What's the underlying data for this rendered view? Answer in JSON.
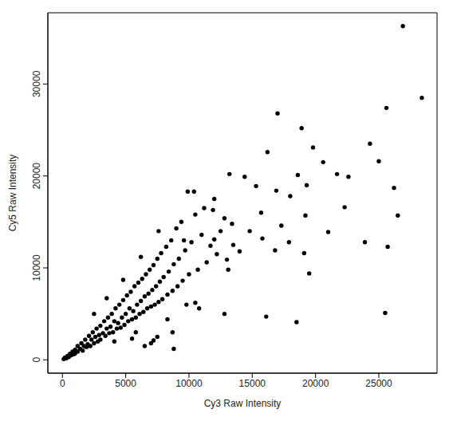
{
  "chart_data": {
    "type": "scatter",
    "x_label": "Cy3 Raw Intensity",
    "y_label": "Cy5 Raw Intensity",
    "color": "#000000",
    "marker": "circle",
    "grid": false,
    "xlim": [
      -1150,
      29600
    ],
    "ylim": [
      -1450,
      37750
    ],
    "xticks": [
      0,
      5000,
      10000,
      15000,
      20000,
      25000
    ],
    "yticks": [
      0,
      10000,
      20000,
      30000
    ],
    "x": [
      26900,
      28400,
      25600,
      24300,
      25000,
      26200,
      26500,
      25700,
      23900,
      25500,
      18900,
      17000,
      19800,
      20600,
      21700,
      22600,
      22300,
      19300,
      18600,
      18000,
      19200,
      21000,
      19100,
      19500,
      18500,
      16100,
      12800,
      16200,
      15300,
      14400,
      13200,
      10400,
      15700,
      16900,
      17300,
      15800,
      14800,
      13400,
      11900,
      12000,
      14000,
      13100,
      16800,
      17900,
      100,
      200,
      300,
      400,
      500,
      600,
      700,
      800,
      900,
      1000,
      1000,
      1200,
      1200,
      1400,
      1500,
      1600,
      1700,
      1800,
      1900,
      2000,
      2100,
      2200,
      2300,
      2400,
      2500,
      2600,
      2700,
      2800,
      2900,
      3000,
      3000,
      3200,
      3300,
      3400,
      3500,
      3600,
      3700,
      3800,
      3900,
      4000,
      4100,
      4200,
      4300,
      4400,
      4500,
      4600,
      4700,
      4800,
      4900,
      5000,
      5100,
      5200,
      5300,
      5400,
      5500,
      5600,
      5700,
      5800,
      5900,
      6000,
      6100,
      6200,
      6300,
      6400,
      6500,
      6600,
      6700,
      6800,
      6900,
      7000,
      7100,
      7200,
      7300,
      7400,
      7500,
      7600,
      7700,
      7800,
      7900,
      8000,
      8200,
      8300,
      8400,
      8600,
      8700,
      8800,
      9000,
      9100,
      9200,
      9400,
      9500,
      9700,
      9900,
      10000,
      10200,
      10500,
      10700,
      11000,
      11200,
      11400,
      11700,
      12000,
      12200,
      12500,
      12800,
      13000,
      13500,
      7000,
      6500,
      5500,
      8700,
      7500,
      10800,
      8800,
      3500,
      2500,
      4800,
      6200,
      7600,
      9600,
      5800,
      4100,
      8300,
      9800,
      7200,
      10500
    ],
    "values": [
      36300,
      28500,
      27400,
      23500,
      21600,
      18700,
      15700,
      12300,
      12800,
      5100,
      25200,
      26800,
      23100,
      21500,
      20200,
      19900,
      16600,
      19000,
      20100,
      17800,
      15700,
      13900,
      11600,
      9400,
      4100,
      4700,
      5000,
      22600,
      18900,
      19900,
      20200,
      18300,
      16000,
      18400,
      14600,
      13200,
      14000,
      14800,
      16300,
      13100,
      11800,
      9800,
      11900,
      12800,
      80,
      250,
      150,
      420,
      300,
      650,
      500,
      900,
      600,
      1100,
      700,
      1500,
      900,
      1200,
      1800,
      1000,
      1500,
      2200,
      1400,
      1700,
      2600,
      1500,
      2200,
      3000,
      1800,
      2500,
      3400,
      2000,
      2700,
      3700,
      2200,
      2900,
      4200,
      2600,
      3400,
      4600,
      2900,
      3600,
      5000,
      3000,
      4200,
      5600,
      3400,
      4000,
      6000,
      3500,
      4600,
      6500,
      3800,
      5000,
      7000,
      4200,
      5600,
      7400,
      4400,
      5300,
      8000,
      4600,
      6000,
      8400,
      5000,
      6400,
      8800,
      5200,
      6900,
      9300,
      5600,
      7200,
      9800,
      5800,
      7600,
      10300,
      6000,
      8000,
      11000,
      6300,
      8500,
      11600,
      6600,
      9000,
      12300,
      7100,
      9600,
      13000,
      7500,
      10400,
      14300,
      8000,
      11000,
      15000,
      8600,
      11900,
      18300,
      9300,
      12800,
      15800,
      9800,
      13600,
      16500,
      10600,
      12400,
      17500,
      11500,
      14000,
      15400,
      10900,
      12500,
      1800,
      1500,
      2300,
      3000,
      2500,
      5600,
      1200,
      6700,
      5000,
      8700,
      11200,
      14000,
      13000,
      3000,
      2000,
      4400,
      6000,
      2100,
      6200
    ]
  }
}
